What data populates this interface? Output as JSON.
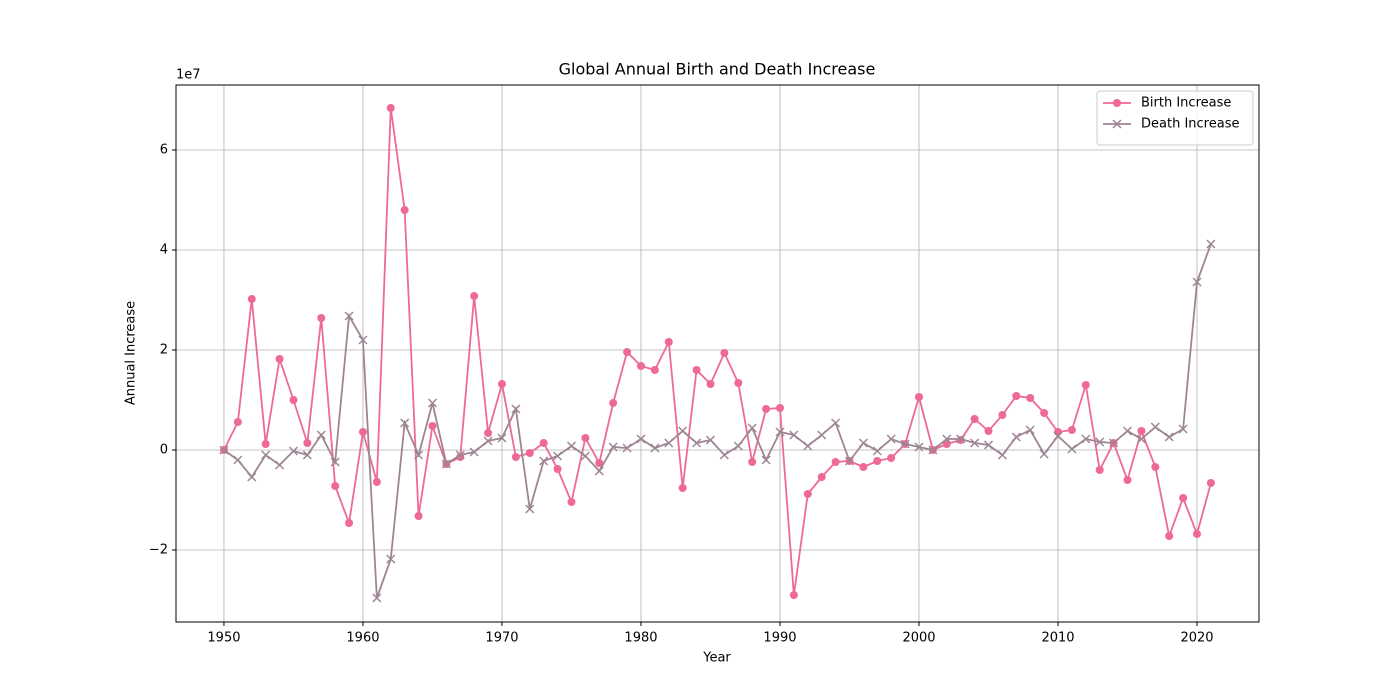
{
  "chart_data": {
    "type": "line",
    "title": "Global Annual Birth and Death Increase",
    "x_label": "Year",
    "y_label": "Annual Increase",
    "y_offset_text": "1e7",
    "x": [
      1950,
      1951,
      1952,
      1953,
      1954,
      1955,
      1956,
      1957,
      1958,
      1959,
      1960,
      1961,
      1962,
      1963,
      1964,
      1965,
      1966,
      1967,
      1968,
      1969,
      1970,
      1971,
      1972,
      1973,
      1974,
      1975,
      1976,
      1977,
      1978,
      1979,
      1980,
      1981,
      1982,
      1983,
      1984,
      1985,
      1986,
      1987,
      1988,
      1989,
      1990,
      1991,
      1992,
      1993,
      1994,
      1995,
      1996,
      1997,
      1998,
      1999,
      2000,
      2001,
      2002,
      2003,
      2004,
      2005,
      2006,
      2007,
      2008,
      2009,
      2010,
      2011,
      2012,
      2013,
      2014,
      2015,
      2016,
      2017,
      2018,
      2019,
      2020,
      2021
    ],
    "series": [
      {
        "name": "Birth Increase",
        "color": "#ee6a93",
        "marker": "circle",
        "values": [
          0,
          0.56,
          3.02,
          0.12,
          1.82,
          1.0,
          0.14,
          2.64,
          -0.72,
          -1.46,
          0.36,
          -0.64,
          6.84,
          4.8,
          -1.32,
          0.48,
          -0.28,
          -0.14,
          3.08,
          0.34,
          1.32,
          -0.14,
          -0.06,
          0.14,
          -0.38,
          -1.04,
          0.24,
          -0.26,
          0.94,
          1.96,
          1.68,
          1.6,
          2.16,
          -0.76,
          1.6,
          1.32,
          1.94,
          1.34,
          -0.24,
          0.82,
          0.84,
          -2.9,
          -0.88,
          -0.54,
          -0.24,
          -0.22,
          -0.34,
          -0.22,
          -0.16,
          0.12,
          1.06,
          0.0,
          0.12,
          0.2,
          0.62,
          0.38,
          0.7,
          1.08,
          1.04,
          0.74,
          0.36,
          0.4,
          1.3,
          -0.4,
          0.14,
          -0.6,
          0.38,
          -0.34,
          -1.72,
          -0.96,
          -1.68,
          -0.66
        ]
      },
      {
        "name": "Death Increase",
        "color": "#9e8595",
        "marker": "x",
        "values": [
          0,
          -0.2,
          -0.54,
          -0.1,
          -0.3,
          -0.02,
          -0.1,
          0.3,
          -0.24,
          2.68,
          2.2,
          -2.96,
          -2.18,
          0.54,
          -0.1,
          0.94,
          -0.28,
          -0.1,
          -0.04,
          0.18,
          0.24,
          0.82,
          -1.18,
          -0.22,
          -0.12,
          0.08,
          -0.12,
          -0.42,
          0.06,
          0.04,
          0.22,
          0.04,
          0.14,
          0.38,
          0.14,
          0.2,
          -0.1,
          0.08,
          0.44,
          -0.2,
          0.36,
          0.3,
          0.08,
          0.3,
          0.54,
          -0.22,
          0.14,
          -0.02,
          0.22,
          0.12,
          0.06,
          0.0,
          0.22,
          0.22,
          0.14,
          0.1,
          -0.1,
          0.26,
          0.4,
          -0.08,
          0.28,
          0.02,
          0.22,
          0.16,
          0.14,
          0.38,
          0.22,
          0.46,
          0.26,
          0.42,
          3.36,
          4.12
        ]
      }
    ],
    "xlim": [
      1946.55,
      2024.46
    ],
    "xticks": [
      1950,
      1960,
      1970,
      1980,
      1990,
      2000,
      2010,
      2020
    ],
    "ylim": [
      -3.44,
      7.3
    ],
    "yticks": [
      {
        "value": -2,
        "label": "−2"
      },
      0,
      2,
      4,
      6
    ],
    "grid": true,
    "legend": "upper right"
  }
}
